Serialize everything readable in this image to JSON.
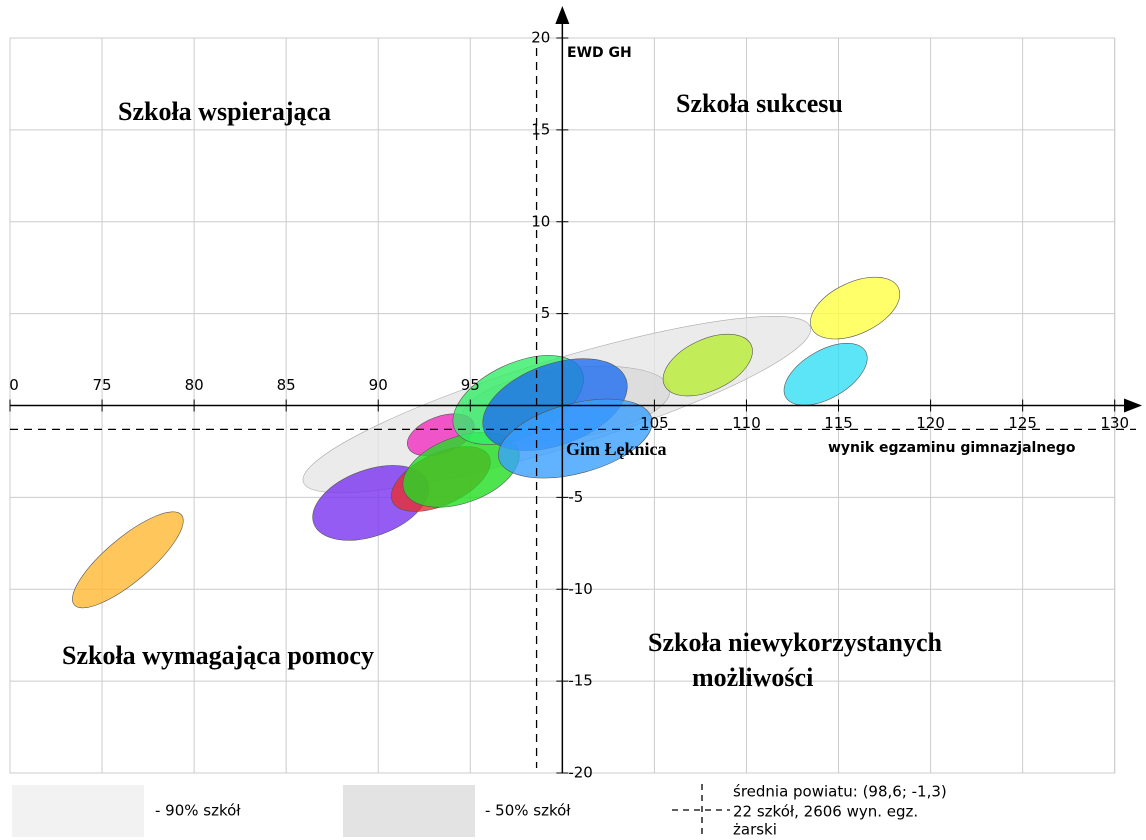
{
  "chart_data": {
    "type": "ellipse",
    "xlabel": "wynik egzaminu gimnazjalnego",
    "ylabel": "EWD GH",
    "xlim": [
      70,
      131.7
    ],
    "ylim": [
      -20,
      20
    ],
    "xticks": [
      {
        "value": 70,
        "label": "0"
      },
      75,
      80,
      85,
      90,
      95,
      105,
      110,
      115,
      120,
      125,
      130
    ],
    "yticks": [
      -20,
      -15,
      -10,
      -5,
      5,
      10,
      15,
      20
    ],
    "grid": true,
    "quadrants": [
      "Szkoła wspierająca",
      "Szkoła sukcesu",
      "Szkoła wymagająca pomocy",
      "Szkoła niewykorzystanych",
      "możliwości"
    ],
    "mean": {
      "x": 98.6,
      "y": -1.3
    },
    "school_label": "Gim Łęknica",
    "legend": [
      "- 90% szkół",
      "- 50% szkół"
    ],
    "mean_label": [
      "średnia powiatu: (98,6; -1,3)",
      "22 szkół, 2606 wyn. egz.",
      "żarski"
    ],
    "ellipses": [
      {
        "cx": 99.7,
        "cy": 0.05,
        "rx": 14.4,
        "ry": 2.4,
        "angle": 17,
        "color": "#e4e4e4"
      },
      {
        "cx": 100.2,
        "cy": 0.1,
        "rx": 5.7,
        "ry": 1.9,
        "angle": 8,
        "color": "#d8d8d8"
      },
      {
        "cx": 76.4,
        "cy": -8.4,
        "rx": 3.8,
        "ry": 1.2,
        "angle": 40,
        "color": "#ffb833"
      },
      {
        "cx": 89.6,
        "cy": -5.3,
        "rx": 3.3,
        "ry": 1.8,
        "angle": 20,
        "color": "#7a33f0"
      },
      {
        "cx": 93.4,
        "cy": -1.6,
        "rx": 1.9,
        "ry": 1.0,
        "angle": 20,
        "color": "#f030c0"
      },
      {
        "cx": 93.4,
        "cy": -4.0,
        "rx": 2.9,
        "ry": 1.4,
        "angle": 25,
        "color": "#e83030"
      },
      {
        "cx": 94.5,
        "cy": -3.5,
        "rx": 3.3,
        "ry": 1.8,
        "angle": 20,
        "color": "#22dd22"
      },
      {
        "cx": 97.6,
        "cy": 0.3,
        "rx": 3.8,
        "ry": 2.0,
        "angle": 25,
        "color": "#33ee66"
      },
      {
        "cx": 99.6,
        "cy": 0.05,
        "rx": 4.1,
        "ry": 2.2,
        "angle": 20,
        "color": "#1e6ef0"
      },
      {
        "cx": 100.7,
        "cy": -1.8,
        "rx": 4.3,
        "ry": 1.9,
        "angle": 15,
        "color": "#3aa0ff"
      },
      {
        "cx": 107.9,
        "cy": 2.2,
        "rx": 2.6,
        "ry": 1.4,
        "angle": 25,
        "color": "#b8ee33"
      },
      {
        "cx": 114.3,
        "cy": 1.7,
        "rx": 2.5,
        "ry": 1.3,
        "angle": 30,
        "color": "#33ddf5"
      },
      {
        "cx": 115.9,
        "cy": 5.3,
        "rx": 2.6,
        "ry": 1.4,
        "angle": 25,
        "color": "#ffff44"
      }
    ]
  }
}
